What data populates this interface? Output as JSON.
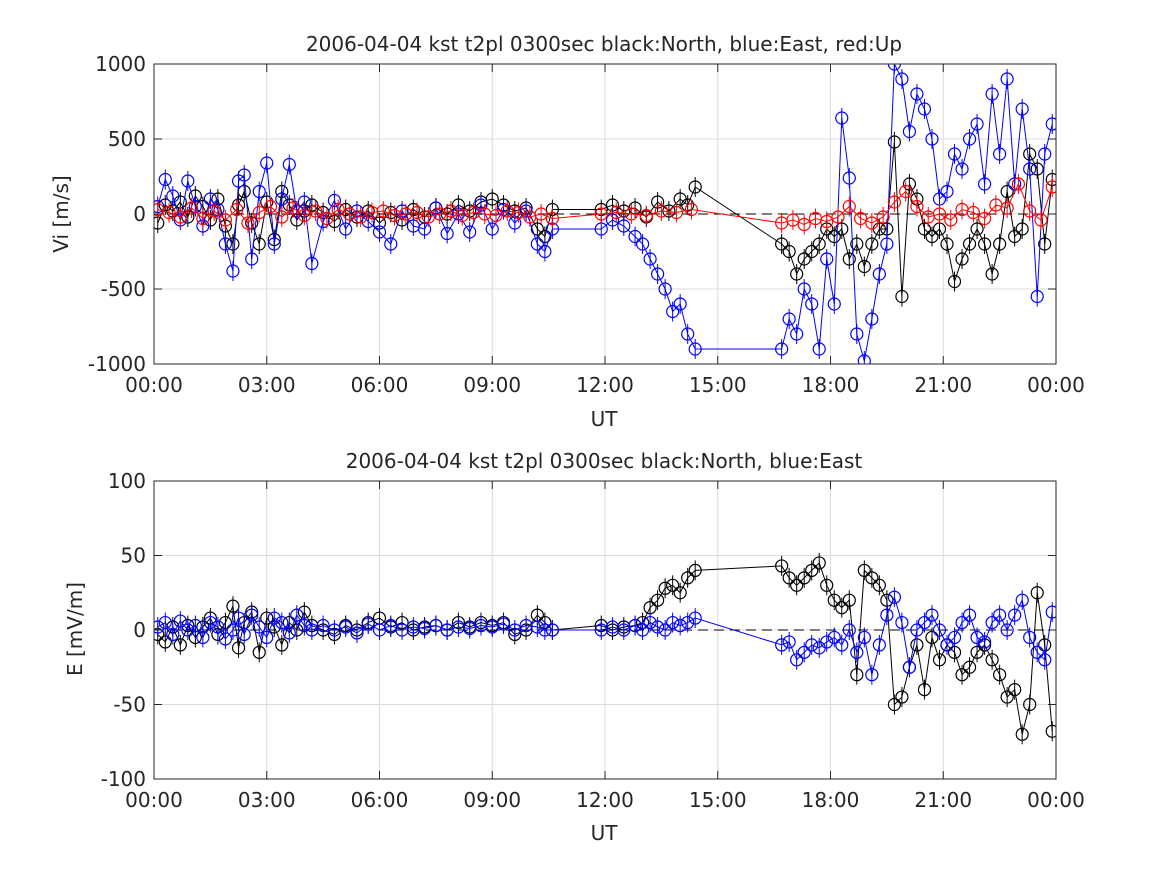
{
  "chart_data": [
    {
      "type": "scatter",
      "title": "2006-04-04 kst t2pl 0300sec black:North, blue:East, red:Up",
      "xlabel": "UT",
      "ylabel": "Vi [m/s]",
      "xlim": [
        0,
        24
      ],
      "ylim": [
        -1000,
        1000
      ],
      "xticks": [
        0,
        3,
        6,
        9,
        12,
        15,
        18,
        21,
        24
      ],
      "xtick_labels": [
        "00:00",
        "03:00",
        "06:00",
        "09:00",
        "12:00",
        "15:00",
        "18:00",
        "21:00",
        "00:00"
      ],
      "yticks": [
        -1000,
        -500,
        0,
        500,
        1000
      ],
      "ytick_labels": [
        "-1000",
        "-500",
        "0",
        "500",
        "1000"
      ],
      "grid": true,
      "zero_line": "dashed",
      "series": [
        {
          "name": "North",
          "color": "#000000",
          "x": [
            0.1,
            0.3,
            0.5,
            0.7,
            0.9,
            1.1,
            1.3,
            1.5,
            1.7,
            1.9,
            2.1,
            2.25,
            2.4,
            2.6,
            2.8,
            3.0,
            3.2,
            3.4,
            3.6,
            3.8,
            4.0,
            4.2,
            4.5,
            4.8,
            5.1,
            5.4,
            5.7,
            6.0,
            6.3,
            6.6,
            6.9,
            7.2,
            7.5,
            7.8,
            8.1,
            8.4,
            8.7,
            9.0,
            9.3,
            9.6,
            9.9,
            10.2,
            10.4,
            10.6,
            11.9,
            12.2,
            12.5,
            12.8,
            13.1,
            13.4,
            13.7,
            14.0,
            14.2,
            14.4,
            16.7,
            16.9,
            17.1,
            17.3,
            17.5,
            17.7,
            17.9,
            18.1,
            18.3,
            18.5,
            18.7,
            18.9,
            19.1,
            19.3,
            19.5,
            19.7,
            19.9,
            20.1,
            20.3,
            20.5,
            20.7,
            20.9,
            21.1,
            21.3,
            21.5,
            21.7,
            21.9,
            22.1,
            22.3,
            22.5,
            22.7,
            22.9,
            23.1,
            23.3,
            23.5,
            23.7,
            23.9
          ],
          "y": [
            -60,
            60,
            20,
            80,
            -20,
            120,
            50,
            -40,
            100,
            -80,
            -200,
            60,
            150,
            -60,
            -200,
            80,
            -170,
            150,
            60,
            -40,
            20,
            60,
            10,
            -50,
            30,
            -20,
            20,
            -60,
            10,
            -40,
            30,
            -20,
            40,
            0,
            60,
            20,
            80,
            100,
            60,
            20,
            40,
            -100,
            -150,
            30,
            30,
            60,
            20,
            40,
            -20,
            80,
            20,
            100,
            60,
            180,
            -200,
            -250,
            -400,
            -300,
            -250,
            -200,
            -100,
            -150,
            -100,
            -300,
            -200,
            -350,
            -200,
            -100,
            -100,
            480,
            -550,
            200,
            100,
            -100,
            -150,
            -100,
            -200,
            -450,
            -300,
            -200,
            -100,
            -200,
            -400,
            -200,
            150,
            -150,
            -100,
            400,
            300,
            -200,
            230
          ]
        },
        {
          "name": "East",
          "color": "#0000ff",
          "x": [
            0.1,
            0.3,
            0.5,
            0.7,
            0.9,
            1.1,
            1.3,
            1.5,
            1.7,
            1.9,
            2.1,
            2.25,
            2.4,
            2.6,
            2.8,
            3.0,
            3.2,
            3.4,
            3.6,
            3.8,
            4.0,
            4.2,
            4.5,
            4.8,
            5.1,
            5.4,
            5.7,
            6.0,
            6.3,
            6.6,
            6.9,
            7.2,
            7.5,
            7.8,
            8.1,
            8.4,
            8.7,
            9.0,
            9.3,
            9.6,
            9.9,
            10.2,
            10.4,
            10.6,
            11.9,
            12.2,
            12.5,
            12.8,
            13.0,
            13.2,
            13.4,
            13.6,
            13.8,
            14.0,
            14.2,
            14.4,
            16.7,
            16.9,
            17.1,
            17.3,
            17.5,
            17.7,
            17.9,
            18.1,
            18.3,
            18.5,
            18.7,
            18.9,
            19.1,
            19.3,
            19.5,
            19.7,
            19.9,
            20.1,
            20.3,
            20.5,
            20.7,
            20.9,
            21.1,
            21.3,
            21.5,
            21.7,
            21.9,
            22.1,
            22.3,
            22.5,
            22.7,
            22.9,
            23.1,
            23.3,
            23.5,
            23.7,
            23.9
          ],
          "y": [
            50,
            230,
            120,
            -40,
            220,
            50,
            -80,
            100,
            30,
            -200,
            -380,
            220,
            260,
            -300,
            150,
            340,
            -200,
            100,
            330,
            20,
            80,
            -330,
            -50,
            90,
            -100,
            20,
            -50,
            -120,
            -200,
            20,
            -80,
            -100,
            40,
            -130,
            0,
            -120,
            60,
            -100,
            30,
            -60,
            20,
            -200,
            -250,
            -100,
            -100,
            -40,
            -80,
            -150,
            -200,
            -300,
            -400,
            -500,
            -650,
            -600,
            -800,
            -900,
            -900,
            -700,
            -800,
            -500,
            -600,
            -900,
            -300,
            -600,
            640,
            240,
            -800,
            -980,
            -700,
            -400,
            -200,
            1000,
            900,
            550,
            800,
            700,
            500,
            100,
            150,
            400,
            300,
            500,
            600,
            200,
            800,
            400,
            900,
            200,
            700,
            300,
            -550,
            400,
            600
          ]
        },
        {
          "name": "Up",
          "color": "#ff0000",
          "x": [
            0.1,
            0.4,
            0.7,
            1.0,
            1.3,
            1.6,
            1.9,
            2.2,
            2.5,
            2.8,
            3.1,
            3.4,
            3.7,
            4.0,
            4.3,
            4.6,
            4.9,
            5.2,
            5.5,
            5.8,
            6.1,
            6.4,
            6.7,
            7.0,
            7.3,
            7.6,
            7.9,
            8.2,
            8.5,
            8.8,
            9.1,
            9.4,
            9.7,
            10.0,
            10.3,
            10.6,
            11.9,
            12.3,
            12.7,
            13.1,
            13.5,
            13.9,
            14.3,
            16.7,
            17.0,
            17.3,
            17.6,
            17.9,
            18.2,
            18.5,
            18.8,
            19.1,
            19.4,
            19.7,
            20.0,
            20.3,
            20.6,
            20.9,
            21.2,
            21.5,
            21.8,
            22.1,
            22.4,
            22.7,
            23.0,
            23.3,
            23.6,
            23.9
          ],
          "y": [
            30,
            10,
            -20,
            40,
            -30,
            20,
            -40,
            30,
            -60,
            10,
            50,
            -20,
            40,
            -10,
            20,
            -30,
            30,
            0,
            -20,
            10,
            20,
            -10,
            0,
            10,
            -20,
            0,
            20,
            -10,
            10,
            0,
            -10,
            20,
            10,
            -20,
            0,
            -30,
            0,
            10,
            0,
            -10,
            20,
            10,
            30,
            -60,
            -40,
            -70,
            -30,
            -50,
            -20,
            50,
            -30,
            -60,
            -20,
            80,
            150,
            50,
            -20,
            0,
            -40,
            30,
            10,
            -30,
            60,
            40,
            200,
            20,
            -40,
            180
          ]
        }
      ]
    },
    {
      "type": "scatter",
      "title": "2006-04-04 kst t2pl 0300sec black:North, blue:East",
      "xlabel": "UT",
      "ylabel": "E [mV/m]",
      "xlim": [
        0,
        24
      ],
      "ylim": [
        -100,
        100
      ],
      "xticks": [
        0,
        3,
        6,
        9,
        12,
        15,
        18,
        21,
        24
      ],
      "xtick_labels": [
        "00:00",
        "03:00",
        "06:00",
        "09:00",
        "12:00",
        "15:00",
        "18:00",
        "21:00",
        "00:00"
      ],
      "yticks": [
        -100,
        -50,
        0,
        50,
        100
      ],
      "ytick_labels": [
        "-100",
        "-50",
        "0",
        "50",
        "100"
      ],
      "grid": true,
      "zero_line": "dashed",
      "series": [
        {
          "name": "North",
          "color": "#000000",
          "x": [
            0.1,
            0.3,
            0.5,
            0.7,
            0.9,
            1.1,
            1.3,
            1.5,
            1.7,
            1.9,
            2.1,
            2.25,
            2.4,
            2.6,
            2.8,
            3.0,
            3.2,
            3.4,
            3.6,
            3.8,
            4.0,
            4.2,
            4.5,
            4.8,
            5.1,
            5.4,
            5.7,
            6.0,
            6.3,
            6.6,
            6.9,
            7.2,
            7.5,
            7.8,
            8.1,
            8.4,
            8.7,
            9.0,
            9.3,
            9.6,
            9.9,
            10.2,
            10.4,
            10.6,
            11.9,
            12.2,
            12.5,
            12.8,
            13.0,
            13.2,
            13.4,
            13.6,
            13.8,
            14.0,
            14.2,
            14.4,
            16.7,
            16.9,
            17.1,
            17.3,
            17.5,
            17.7,
            17.9,
            18.1,
            18.3,
            18.5,
            18.7,
            18.9,
            19.1,
            19.3,
            19.5,
            19.7,
            19.9,
            20.1,
            20.3,
            20.5,
            20.7,
            20.9,
            21.1,
            21.3,
            21.5,
            21.7,
            21.9,
            22.1,
            22.3,
            22.5,
            22.7,
            22.9,
            23.1,
            23.3,
            23.5,
            23.7,
            23.9
          ],
          "y": [
            -3,
            -8,
            2,
            -10,
            3,
            -5,
            2,
            8,
            -3,
            5,
            16,
            -12,
            5,
            12,
            -15,
            8,
            2,
            -10,
            5,
            0,
            12,
            3,
            0,
            -3,
            3,
            0,
            5,
            8,
            2,
            5,
            0,
            2,
            3,
            0,
            5,
            2,
            5,
            3,
            5,
            -3,
            0,
            10,
            5,
            0,
            3,
            0,
            2,
            3,
            5,
            15,
            20,
            28,
            30,
            25,
            35,
            40,
            43,
            35,
            30,
            35,
            40,
            45,
            30,
            20,
            15,
            20,
            -30,
            40,
            35,
            30,
            20,
            -50,
            -45,
            -25,
            -10,
            -40,
            -5,
            -20,
            -10,
            -15,
            -30,
            -25,
            -15,
            -10,
            -20,
            -30,
            -45,
            -40,
            -70,
            -50,
            25,
            -10,
            -68
          ]
        },
        {
          "name": "East",
          "color": "#0000ff",
          "x": [
            0.1,
            0.3,
            0.5,
            0.7,
            0.9,
            1.1,
            1.3,
            1.5,
            1.7,
            1.9,
            2.1,
            2.25,
            2.4,
            2.6,
            2.8,
            3.0,
            3.2,
            3.4,
            3.6,
            3.8,
            4.0,
            4.2,
            4.5,
            4.8,
            5.1,
            5.4,
            5.7,
            6.0,
            6.3,
            6.6,
            6.9,
            7.2,
            7.5,
            7.8,
            8.1,
            8.4,
            8.7,
            9.0,
            9.3,
            9.6,
            9.9,
            10.2,
            10.4,
            10.6,
            11.9,
            12.2,
            12.5,
            12.8,
            13.0,
            13.2,
            13.4,
            13.6,
            13.8,
            14.0,
            14.2,
            14.4,
            16.7,
            16.9,
            17.1,
            17.3,
            17.5,
            17.7,
            17.9,
            18.1,
            18.3,
            18.5,
            18.7,
            18.9,
            19.1,
            19.3,
            19.5,
            19.7,
            19.9,
            20.1,
            20.3,
            20.5,
            20.7,
            20.9,
            21.1,
            21.3,
            21.5,
            21.7,
            21.9,
            22.1,
            22.3,
            22.5,
            22.7,
            22.9,
            23.1,
            23.3,
            23.5,
            23.7,
            23.9
          ],
          "y": [
            2,
            5,
            -3,
            6,
            0,
            3,
            -5,
            5,
            2,
            -6,
            0,
            8,
            -3,
            10,
            2,
            -5,
            8,
            5,
            -2,
            10,
            3,
            0,
            3,
            0,
            2,
            -2,
            4,
            0,
            3,
            0,
            2,
            1,
            3,
            0,
            2,
            1,
            3,
            2,
            4,
            0,
            3,
            2,
            0,
            0,
            0,
            2,
            0,
            3,
            0,
            5,
            2,
            0,
            5,
            3,
            5,
            8,
            -10,
            -8,
            -20,
            -15,
            -10,
            -12,
            -8,
            -5,
            -10,
            0,
            -15,
            -5,
            -30,
            -10,
            10,
            22,
            5,
            -25,
            0,
            5,
            10,
            0,
            -10,
            -5,
            5,
            10,
            -5,
            -8,
            5,
            10,
            0,
            10,
            20,
            -5,
            -15,
            -20,
            12
          ]
        }
      ]
    }
  ]
}
